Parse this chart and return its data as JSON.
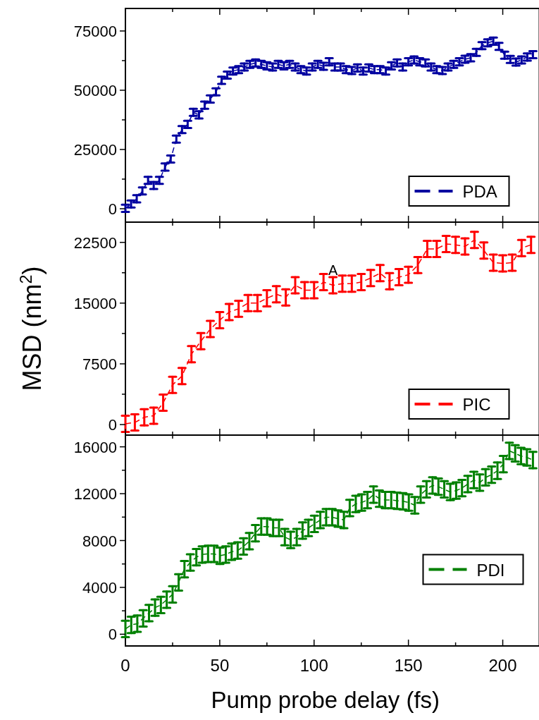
{
  "chart_data": [
    {
      "type": "line",
      "xlim": [
        0,
        219.4
      ],
      "xticks": [
        0,
        {
          "value": 25,
          "label": null
        },
        50,
        {
          "value": 75,
          "label": null
        },
        100,
        {
          "value": 125,
          "label": null
        },
        150,
        {
          "value": 175,
          "label": null
        },
        200
      ],
      "ylim": [
        -5650,
        84500
      ],
      "yticks": [
        0,
        {
          "value": 12500,
          "label": null
        },
        25000,
        {
          "value": 37500,
          "label": null
        },
        50000,
        {
          "value": 62500,
          "label": null
        },
        75000
      ],
      "tick_labels": "y",
      "legend": "bottom right",
      "line_style": "dashed",
      "marker": "none",
      "series": [
        {
          "name": "PDA",
          "color": "#0000a0",
          "x": [
            0,
            3,
            6,
            9,
            12,
            15,
            18,
            21,
            24,
            27,
            30,
            33,
            36,
            39,
            42,
            45,
            48,
            51,
            54,
            57,
            60,
            63,
            66,
            69,
            72,
            75,
            78,
            81,
            84,
            87,
            90,
            93,
            96,
            99,
            102,
            105,
            108,
            111,
            114,
            117,
            120,
            123,
            126,
            129,
            132,
            135,
            138,
            141,
            144,
            147,
            150,
            153,
            156,
            159,
            162,
            165,
            168,
            171,
            174,
            177,
            180,
            183,
            186,
            189,
            192,
            195,
            198,
            201,
            204,
            207,
            210,
            213,
            216
          ],
          "values": [
            200,
            2000,
            4200,
            7500,
            12000,
            9800,
            12000,
            17600,
            21000,
            29400,
            33400,
            35600,
            40700,
            39600,
            43700,
            46300,
            49300,
            54200,
            56400,
            58100,
            58700,
            59800,
            60900,
            61500,
            60900,
            60300,
            59800,
            60900,
            60300,
            60900,
            59800,
            58700,
            58100,
            59800,
            60900,
            60100,
            62000,
            59800,
            59800,
            58700,
            58300,
            59400,
            58100,
            59400,
            58700,
            58700,
            58100,
            60300,
            61500,
            59800,
            62000,
            62800,
            62000,
            61500,
            59800,
            58700,
            58300,
            59800,
            60900,
            62000,
            63100,
            63700,
            66000,
            68800,
            70000,
            70700,
            68500,
            64800,
            63000,
            61900,
            62800,
            64000,
            65000
          ],
          "errors": [
            1500,
            1500,
            1500,
            1500,
            1500,
            1500,
            1500,
            1500,
            1500,
            1500,
            1500,
            1500,
            1500,
            1500,
            1500,
            1500,
            1500,
            1500,
            1500,
            1500,
            1500,
            1500,
            1500,
            1500,
            1500,
            1500,
            1500,
            1500,
            1500,
            1500,
            1500,
            1500,
            1500,
            1500,
            1500,
            1500,
            1500,
            1500,
            1500,
            1500,
            1500,
            1500,
            1500,
            1500,
            1500,
            1500,
            1500,
            1500,
            1500,
            1500,
            1500,
            1500,
            1500,
            1500,
            1500,
            1500,
            1500,
            1500,
            1500,
            1500,
            1500,
            1500,
            1500,
            1500,
            1500,
            1500,
            1500,
            1500,
            1500,
            1500,
            1500,
            1500,
            1500
          ]
        }
      ]
    },
    {
      "type": "line",
      "ylabel": "MSD (nm$^{2}$)",
      "annotations": [
        {
          "text": "A",
          "x": 110,
          "y": 18500
        }
      ],
      "xlim": [
        0,
        219.4
      ],
      "xticks": [
        0,
        {
          "value": 25,
          "label": null
        },
        50,
        {
          "value": 75,
          "label": null
        },
        100,
        {
          "value": 125,
          "label": null
        },
        150,
        {
          "value": 175,
          "label": null
        },
        200
      ],
      "ylim": [
        -1300,
        25000
      ],
      "yticks": [
        0,
        {
          "value": 3750,
          "label": null
        },
        7500,
        {
          "value": 11250,
          "label": null
        },
        15000,
        {
          "value": 18750,
          "label": null
        },
        22500
      ],
      "tick_labels": "y",
      "legend": "bottom right",
      "line_style": "dashed",
      "marker": "none",
      "series": [
        {
          "name": "PIC",
          "color": "#ff0000",
          "x": [
            0,
            5,
            10,
            15,
            20,
            25,
            30,
            35,
            40,
            45,
            50,
            55,
            60,
            65,
            70,
            75,
            80,
            85,
            90,
            95,
            100,
            105,
            110,
            115,
            120,
            125,
            130,
            135,
            140,
            145,
            150,
            155,
            160,
            165,
            170,
            175,
            180,
            185,
            190,
            195,
            200,
            205,
            210,
            215
          ],
          "values": [
            100,
            260,
            900,
            1100,
            2700,
            4900,
            6000,
            8700,
            10300,
            11800,
            12900,
            13900,
            14300,
            15000,
            15000,
            15600,
            16100,
            15700,
            17200,
            16600,
            16600,
            17600,
            17200,
            17400,
            17400,
            17600,
            18100,
            18700,
            17700,
            18200,
            18500,
            19700,
            21700,
            21700,
            22300,
            22200,
            22000,
            22800,
            21500,
            20000,
            19900,
            20000,
            21800,
            22200
          ],
          "errors": [
            1000,
            1000,
            1000,
            1000,
            1000,
            1000,
            1000,
            1000,
            1000,
            1000,
            1000,
            1000,
            1000,
            1000,
            1000,
            1000,
            1000,
            1000,
            1000,
            1000,
            1000,
            1000,
            1000,
            1000,
            1000,
            1000,
            1000,
            1000,
            1000,
            1000,
            1000,
            1000,
            1000,
            1000,
            1000,
            1000,
            1000,
            1000,
            1000,
            1000,
            1000,
            1000,
            1000,
            1000
          ]
        }
      ]
    },
    {
      "type": "line",
      "xlabel": "Pump probe delay (fs)",
      "xlim": [
        0,
        219.4
      ],
      "xticks": [
        0,
        {
          "value": 25,
          "label": null
        },
        50,
        {
          "value": 75,
          "label": null
        },
        100,
        {
          "value": 125,
          "label": null
        },
        150,
        {
          "value": 175,
          "label": null
        },
        200
      ],
      "ylim": [
        -1000,
        17000
      ],
      "yticks": [
        0,
        {
          "value": 2000,
          "label": null
        },
        4000,
        {
          "value": 6000,
          "label": null
        },
        8000,
        {
          "value": 10000,
          "label": null
        },
        12000,
        {
          "value": 14000,
          "label": null
        },
        16000
      ],
      "legend": "right",
      "line_style": "dashed",
      "marker": "none",
      "series": [
        {
          "name": "PDI",
          "color": "#008000",
          "x": [
            0,
            3.1,
            6.3,
            9.4,
            12.5,
            15.7,
            18.8,
            21.9,
            25,
            28.2,
            31.3,
            34.4,
            37.6,
            40.7,
            43.8,
            47,
            50.1,
            53.2,
            56.3,
            59.5,
            62.6,
            65.7,
            68.9,
            72,
            75.1,
            78.3,
            81.4,
            84.5,
            87.6,
            90.8,
            93.9,
            97,
            100.2,
            103.3,
            106.4,
            109.6,
            112.7,
            115.8,
            118.9,
            122.1,
            125.2,
            128.3,
            131.5,
            134.6,
            137.7,
            140.9,
            144,
            147.1,
            150.2,
            153.4,
            156.5,
            159.6,
            162.8,
            165.9,
            169,
            172.2,
            175.3,
            178.4,
            181.5,
            184.7,
            187.8,
            190.9,
            194.1,
            197.2,
            200.3,
            203.5,
            206.6,
            209.7,
            212.8,
            216
          ],
          "values": [
            450,
            800,
            900,
            1360,
            1800,
            2270,
            2500,
            2950,
            3400,
            4430,
            5560,
            6130,
            6580,
            6810,
            6860,
            6860,
            6700,
            6810,
            7040,
            7150,
            7490,
            7950,
            8630,
            9190,
            9190,
            9080,
            9080,
            8290,
            8060,
            8290,
            8850,
            9080,
            9420,
            9760,
            9990,
            9990,
            9870,
            9760,
            10780,
            11120,
            11240,
            11460,
            11920,
            11580,
            11460,
            11460,
            11400,
            11350,
            11240,
            11010,
            11920,
            12370,
            12710,
            12600,
            12370,
            12140,
            12260,
            12480,
            12830,
            13170,
            12940,
            13390,
            13620,
            13960,
            14530,
            15660,
            15440,
            15210,
            15100,
            14870
          ],
          "errors": [
            700,
            700,
            700,
            700,
            700,
            700,
            700,
            700,
            700,
            700,
            700,
            700,
            700,
            700,
            700,
            700,
            700,
            700,
            700,
            700,
            700,
            700,
            700,
            700,
            700,
            700,
            700,
            700,
            700,
            700,
            700,
            700,
            700,
            700,
            700,
            700,
            700,
            700,
            700,
            700,
            700,
            700,
            700,
            700,
            700,
            700,
            700,
            700,
            700,
            700,
            700,
            700,
            700,
            700,
            700,
            700,
            700,
            700,
            700,
            700,
            700,
            700,
            700,
            700,
            700,
            700,
            700,
            700,
            700,
            700
          ]
        }
      ]
    }
  ]
}
